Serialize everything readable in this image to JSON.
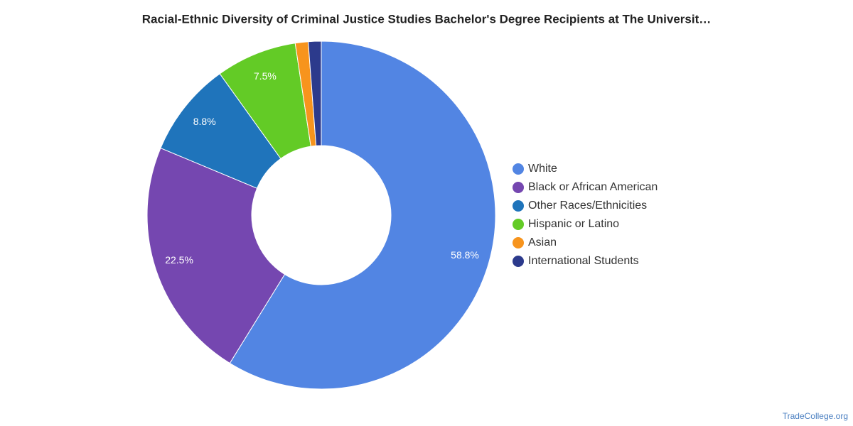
{
  "chart_data": {
    "type": "pie",
    "title": "Racial-Ethnic Diversity of Criminal Justice Studies Bachelor's Degree Recipients at The Universit…",
    "categories": [
      "White",
      "Black or African American",
      "Other Races/Ethnicities",
      "Hispanic or Latino",
      "Asian",
      "International Students"
    ],
    "values": [
      58.8,
      22.5,
      8.8,
      7.5,
      1.2,
      1.2
    ],
    "value_labels": [
      "58.8%",
      "22.5%",
      "8.8%",
      "7.5%",
      null,
      null
    ],
    "colors": [
      "#5285e3",
      "#7547b0",
      "#1f74bb",
      "#63cb26",
      "#f7941d",
      "#2c3a8c"
    ],
    "legend": "right",
    "source": "TradeCollege.org"
  }
}
